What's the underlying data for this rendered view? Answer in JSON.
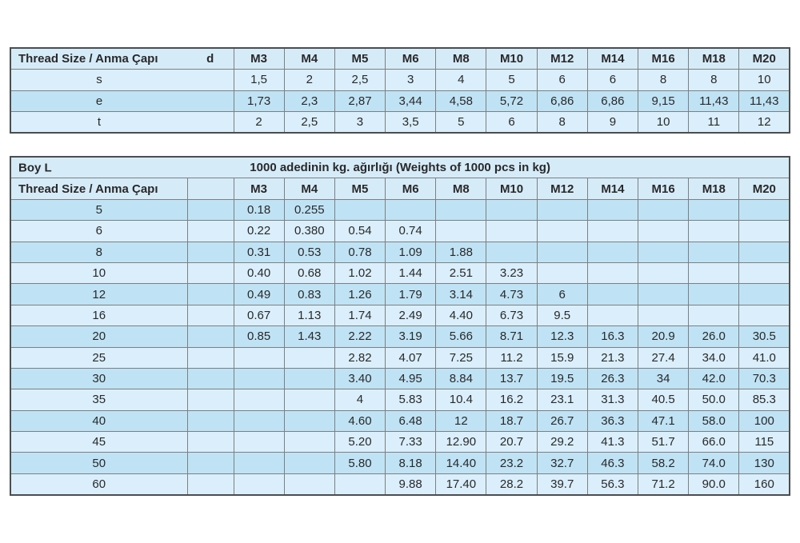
{
  "colors": {
    "row_pale": "#daeffb",
    "row_deep": "#bfe3f4",
    "header_blue": "#d5ecf8",
    "grid_line": "#7d7f82",
    "outer_border": "#4c4d4f",
    "text": "#2a282a"
  },
  "top_table": {
    "corner_label": "Thread Size / Anma Çapı",
    "d_label": "d",
    "columns": [
      "M3",
      "M4",
      "M5",
      "M6",
      "M8",
      "M10",
      "M12",
      "M14",
      "M16",
      "M18",
      "M20"
    ],
    "rows": [
      {
        "label": "s",
        "shade": "pale",
        "values": [
          "1,5",
          "2",
          "2,5",
          "3",
          "4",
          "5",
          "6",
          "6",
          "8",
          "8",
          "10"
        ]
      },
      {
        "label": "e",
        "shade": "deep",
        "values": [
          "1,73",
          "2,3",
          "2,87",
          "3,44",
          "4,58",
          "5,72",
          "6,86",
          "6,86",
          "9,15",
          "11,43",
          "11,43"
        ]
      },
      {
        "label": "t",
        "shade": "pale",
        "values": [
          "2",
          "2,5",
          "3",
          "3,5",
          "5",
          "6",
          "8",
          "9",
          "10",
          "11",
          "12"
        ]
      }
    ]
  },
  "bottom_table": {
    "boy_label": "Boy L",
    "title": "1000 adedinin kg. ağırlığı (Weights of 1000 pcs in kg)",
    "corner_label": "Thread Size / Anma Çapı",
    "columns": [
      "M3",
      "M4",
      "M5",
      "M6",
      "M8",
      "M10",
      "M12",
      "M14",
      "M16",
      "M18",
      "M20"
    ],
    "rows": [
      {
        "label": "5",
        "shade": "deep",
        "values": [
          "0.18",
          "0.255",
          "",
          "",
          "",
          "",
          "",
          "",
          "",
          "",
          ""
        ]
      },
      {
        "label": "6",
        "shade": "pale",
        "values": [
          "0.22",
          "0.380",
          "0.54",
          "0.74",
          "",
          "",
          "",
          "",
          "",
          "",
          ""
        ]
      },
      {
        "label": "8",
        "shade": "deep",
        "values": [
          "0.31",
          "0.53",
          "0.78",
          "1.09",
          "1.88",
          "",
          "",
          "",
          "",
          "",
          ""
        ]
      },
      {
        "label": "10",
        "shade": "pale",
        "values": [
          "0.40",
          "0.68",
          "1.02",
          "1.44",
          "2.51",
          "3.23",
          "",
          "",
          "",
          "",
          ""
        ]
      },
      {
        "label": "12",
        "shade": "deep",
        "values": [
          "0.49",
          "0.83",
          "1.26",
          "1.79",
          "3.14",
          "4.73",
          "6",
          "",
          "",
          "",
          ""
        ]
      },
      {
        "label": "16",
        "shade": "pale",
        "values": [
          "0.67",
          "1.13",
          "1.74",
          "2.49",
          "4.40",
          "6.73",
          "9.5",
          "",
          "",
          "",
          ""
        ]
      },
      {
        "label": "20",
        "shade": "deep",
        "values": [
          "0.85",
          "1.43",
          "2.22",
          "3.19",
          "5.66",
          "8.71",
          "12.3",
          "16.3",
          "20.9",
          "26.0",
          "30.5"
        ]
      },
      {
        "label": "25",
        "shade": "pale",
        "values": [
          "",
          "",
          "2.82",
          "4.07",
          "7.25",
          "11.2",
          "15.9",
          "21.3",
          "27.4",
          "34.0",
          "41.0"
        ]
      },
      {
        "label": "30",
        "shade": "deep",
        "values": [
          "",
          "",
          "3.40",
          "4.95",
          "8.84",
          "13.7",
          "19.5",
          "26.3",
          "34",
          "42.0",
          "70.3"
        ]
      },
      {
        "label": "35",
        "shade": "pale",
        "values": [
          "",
          "",
          "4",
          "5.83",
          "10.4",
          "16.2",
          "23.1",
          "31.3",
          "40.5",
          "50.0",
          "85.3"
        ]
      },
      {
        "label": "40",
        "shade": "deep",
        "values": [
          "",
          "",
          "4.60",
          "6.48",
          "12",
          "18.7",
          "26.7",
          "36.3",
          "47.1",
          "58.0",
          "100"
        ]
      },
      {
        "label": "45",
        "shade": "pale",
        "values": [
          "",
          "",
          "5.20",
          "7.33",
          "12.90",
          "20.7",
          "29.2",
          "41.3",
          "51.7",
          "66.0",
          "115"
        ]
      },
      {
        "label": "50",
        "shade": "deep",
        "values": [
          "",
          "",
          "5.80",
          "8.18",
          "14.40",
          "23.2",
          "32.7",
          "46.3",
          "58.2",
          "74.0",
          "130"
        ]
      },
      {
        "label": "60",
        "shade": "pale",
        "values": [
          "",
          "",
          "",
          "9.88",
          "17.40",
          "28.2",
          "39.7",
          "56.3",
          "71.2",
          "90.0",
          "160"
        ]
      }
    ]
  }
}
